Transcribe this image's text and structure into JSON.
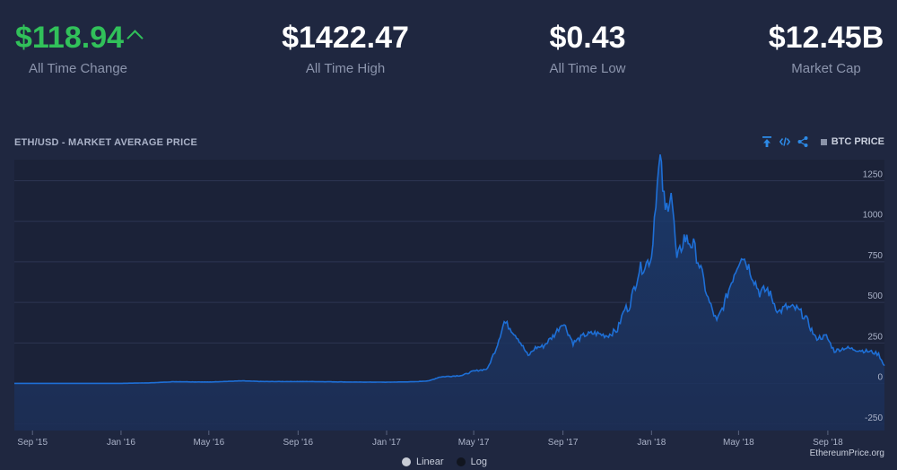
{
  "stats": [
    {
      "value": "$118.94",
      "label": "All Time Change",
      "trend": "up"
    },
    {
      "value": "$1422.47",
      "label": "All Time High"
    },
    {
      "value": "$0.43",
      "label": "All Time Low"
    },
    {
      "value": "$12.45B",
      "label": "Market Cap"
    }
  ],
  "chart_header": {
    "title": "ETH/USD - MARKET AVERAGE PRICE",
    "tools": [
      "download-icon",
      "embed-code-icon",
      "share-icon"
    ],
    "btc_toggle_label": "BTC PRICE"
  },
  "scale_toggle": {
    "options": [
      "Linear",
      "Log"
    ],
    "selected": "Linear"
  },
  "watermark": "EthereumPrice.org",
  "colors": {
    "background": "#1f2740",
    "line": "#1e6fd6",
    "positive": "#31c15a"
  },
  "chart_data": {
    "type": "area",
    "x_ticks": [
      "Sep '15",
      "Jan '16",
      "May '16",
      "Sep '16",
      "Jan '17",
      "May '17",
      "Sep '17",
      "Jan '18",
      "May '18",
      "Sep '18"
    ],
    "y_ticks": [
      -250,
      0,
      250,
      500,
      750,
      1000,
      1250
    ],
    "xlim": [
      "2015-08-07",
      "2018-11-18"
    ],
    "ylim": [
      -290,
      1380
    ],
    "grid": true,
    "y_axis_position": "right",
    "points": [
      [
        "2015-08-07",
        1
      ],
      [
        "2015-11-01",
        1
      ],
      [
        "2016-01-01",
        1
      ],
      [
        "2016-02-10",
        4
      ],
      [
        "2016-03-15",
        11
      ],
      [
        "2016-05-01",
        9
      ],
      [
        "2016-06-15",
        16
      ],
      [
        "2016-07-15",
        12
      ],
      [
        "2016-09-15",
        12
      ],
      [
        "2016-11-15",
        9
      ],
      [
        "2017-01-01",
        8
      ],
      [
        "2017-02-10",
        11
      ],
      [
        "2017-03-01",
        17
      ],
      [
        "2017-03-15",
        40
      ],
      [
        "2017-04-15",
        50
      ],
      [
        "2017-04-30",
        75
      ],
      [
        "2017-05-20",
        90
      ],
      [
        "2017-06-01",
        220
      ],
      [
        "2017-06-12",
        380
      ],
      [
        "2017-06-20",
        345
      ],
      [
        "2017-07-01",
        280
      ],
      [
        "2017-07-15",
        170
      ],
      [
        "2017-07-25",
        220
      ],
      [
        "2017-08-05",
        230
      ],
      [
        "2017-08-20",
        300
      ],
      [
        "2017-09-01",
        380
      ],
      [
        "2017-09-15",
        250
      ],
      [
        "2017-10-01",
        300
      ],
      [
        "2017-10-15",
        310
      ],
      [
        "2017-11-01",
        295
      ],
      [
        "2017-11-15",
        330
      ],
      [
        "2017-11-25",
        460
      ],
      [
        "2017-12-01",
        470
      ],
      [
        "2017-12-15",
        700
      ],
      [
        "2017-12-25",
        740
      ],
      [
        "2018-01-01",
        780
      ],
      [
        "2018-01-07",
        1150
      ],
      [
        "2018-01-13",
        1380
      ],
      [
        "2018-01-20",
        1050
      ],
      [
        "2018-01-28",
        1200
      ],
      [
        "2018-02-05",
        750
      ],
      [
        "2018-02-15",
        900
      ],
      [
        "2018-02-28",
        850
      ],
      [
        "2018-03-10",
        700
      ],
      [
        "2018-03-20",
        520
      ],
      [
        "2018-04-01",
        380
      ],
      [
        "2018-04-12",
        500
      ],
      [
        "2018-04-25",
        680
      ],
      [
        "2018-05-05",
        800
      ],
      [
        "2018-05-15",
        720
      ],
      [
        "2018-05-30",
        560
      ],
      [
        "2018-06-10",
        580
      ],
      [
        "2018-06-25",
        440
      ],
      [
        "2018-07-05",
        470
      ],
      [
        "2018-07-20",
        460
      ],
      [
        "2018-08-01",
        410
      ],
      [
        "2018-08-15",
        280
      ],
      [
        "2018-08-30",
        290
      ],
      [
        "2018-09-10",
        200
      ],
      [
        "2018-09-25",
        220
      ],
      [
        "2018-10-15",
        205
      ],
      [
        "2018-10-31",
        195
      ],
      [
        "2018-11-10",
        180
      ],
      [
        "2018-11-18",
        110
      ]
    ]
  }
}
